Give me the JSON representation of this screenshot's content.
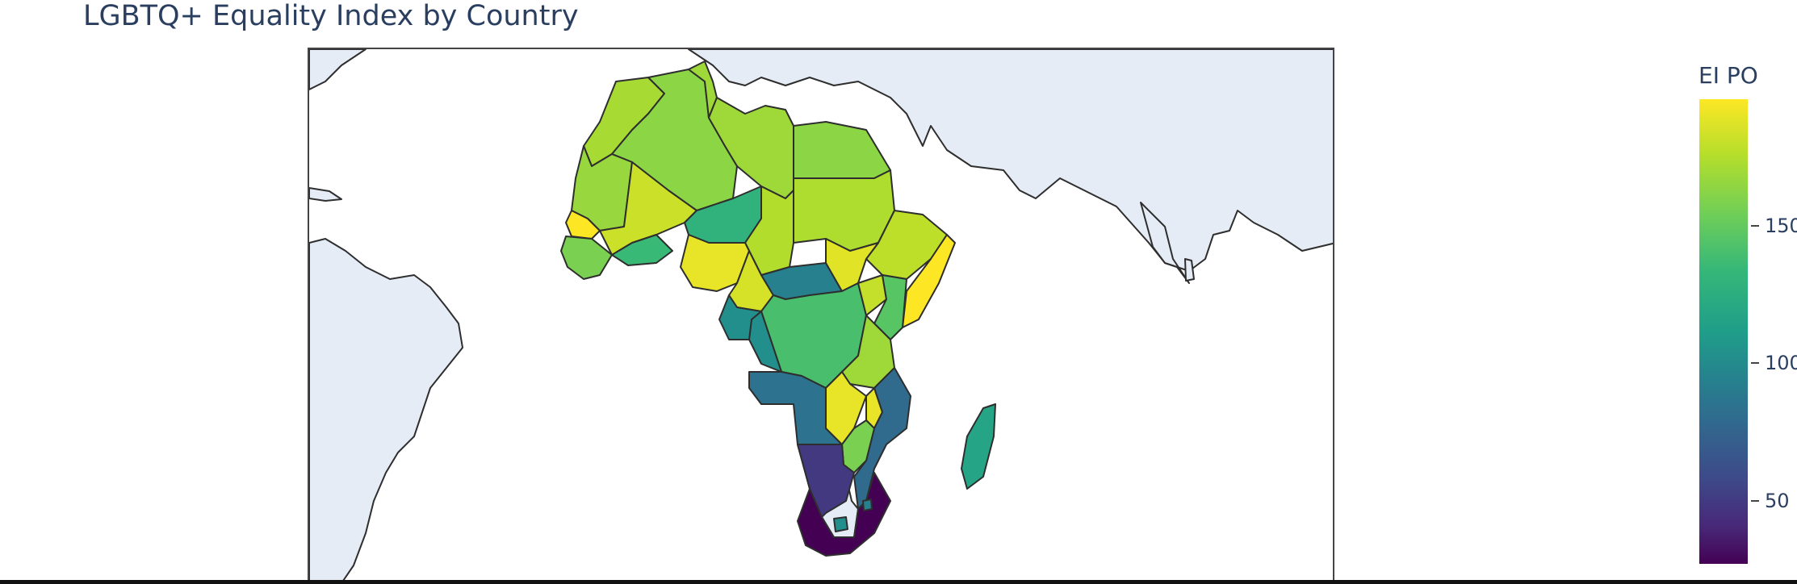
{
  "title": "LGBTQ+ Equality Index by Country",
  "colorbar": {
    "title": "EI PO",
    "ticks": [
      "50",
      "100",
      "150"
    ],
    "colorscale": "Viridis",
    "range": [
      27,
      196
    ]
  },
  "colors": {
    "land_no_data": "#e5ecf6",
    "border": "#2e2e2e",
    "ocean": "#ffffff",
    "title": "#2a3f5f"
  },
  "chart_data": {
    "type": "choropleth",
    "scope": "Africa",
    "projection": "equirectangular",
    "metric": "EI PO",
    "values_estimated": [
      {
        "country": "Morocco",
        "value": 172
      },
      {
        "country": "Algeria",
        "value": 165
      },
      {
        "country": "Tunisia",
        "value": 170
      },
      {
        "country": "Libya",
        "value": 170
      },
      {
        "country": "Egypt",
        "value": 165
      },
      {
        "country": "Mauritania",
        "value": 168
      },
      {
        "country": "Mali",
        "value": 182
      },
      {
        "country": "Niger",
        "value": 135
      },
      {
        "country": "Chad",
        "value": 175
      },
      {
        "country": "Sudan",
        "value": 174
      },
      {
        "country": "Senegal",
        "value": 196
      },
      {
        "country": "Guinea",
        "value": 160
      },
      {
        "country": "Burkina Faso",
        "value": 140
      },
      {
        "country": "Nigeria",
        "value": 190
      },
      {
        "country": "Cameroon",
        "value": 185
      },
      {
        "country": "Central African Republic",
        "value": 100
      },
      {
        "country": "Ethiopia",
        "value": 178
      },
      {
        "country": "Somalia",
        "value": 196
      },
      {
        "country": "South Sudan",
        "value": 188
      },
      {
        "country": "DR Congo",
        "value": 145
      },
      {
        "country": "Republic of the Congo",
        "value": 110
      },
      {
        "country": "Gabon",
        "value": 110
      },
      {
        "country": "Uganda",
        "value": 180
      },
      {
        "country": "Kenya",
        "value": 150
      },
      {
        "country": "Tanzania",
        "value": 170
      },
      {
        "country": "Angola",
        "value": 90
      },
      {
        "country": "Zambia",
        "value": 190
      },
      {
        "country": "Malawi",
        "value": 190
      },
      {
        "country": "Mozambique",
        "value": 85
      },
      {
        "country": "Zimbabwe",
        "value": 160
      },
      {
        "country": "Madagascar",
        "value": 125
      },
      {
        "country": "Botswana",
        "value": 55
      },
      {
        "country": "South Africa",
        "value": 27
      },
      {
        "country": "Lesotho",
        "value": 110
      },
      {
        "country": "Eswatini",
        "value": 100
      }
    ]
  }
}
